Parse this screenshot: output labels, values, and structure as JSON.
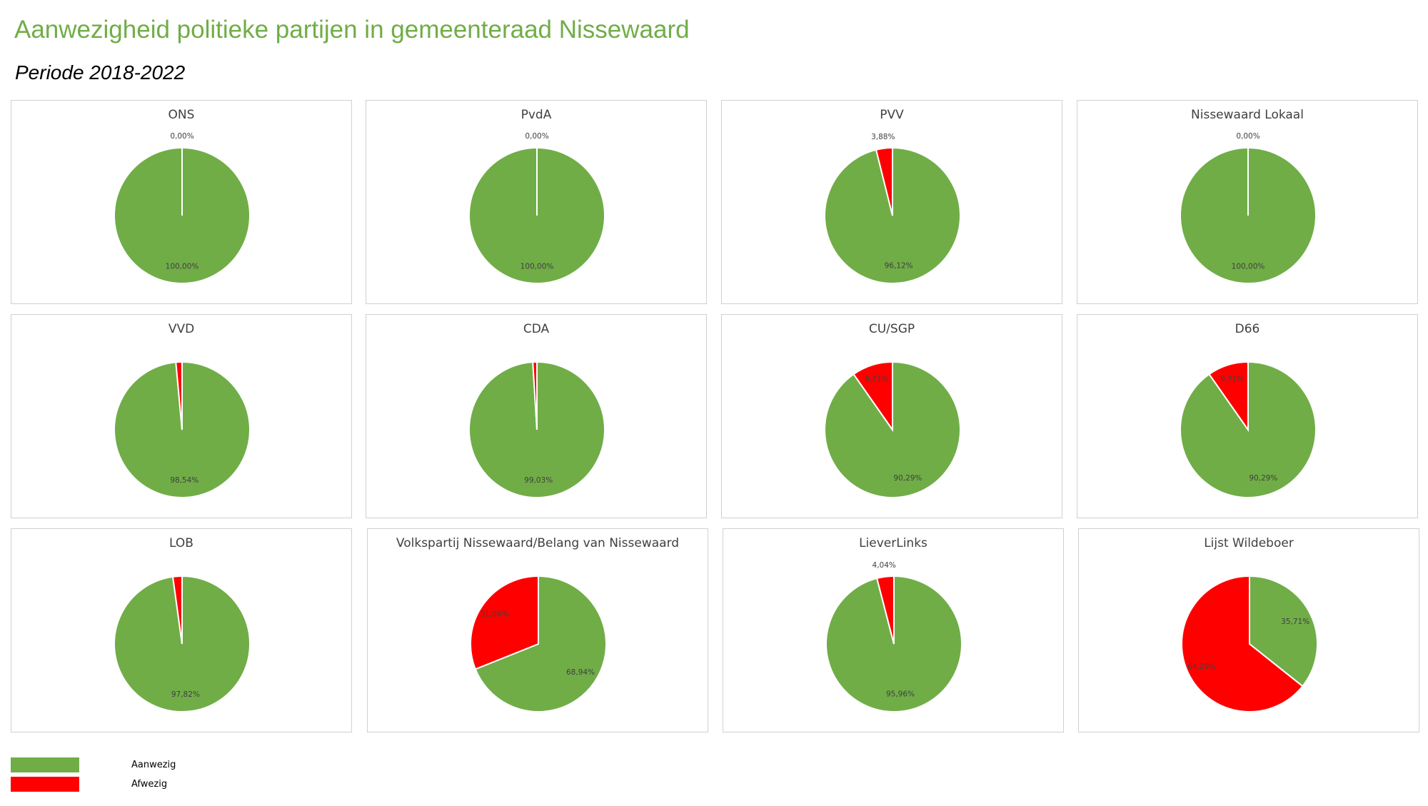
{
  "header": {
    "title": "Aanwezigheid politieke partijen in gemeenteraad Nissewaard",
    "subtitle": "Periode 2018-2022"
  },
  "colors": {
    "aanwezig": "#70ad47",
    "afwezig": "#ff0000"
  },
  "legend": [
    {
      "label": "Aanwezig",
      "color": "#70ad47"
    },
    {
      "label": "Afwezig",
      "color": "#ff0000"
    }
  ],
  "chart_data": [
    {
      "type": "pie",
      "title": "ONS",
      "categories": [
        "Aanwezig",
        "Afwezig"
      ],
      "values": [
        100.0,
        0.0
      ],
      "labels": [
        "100,00%",
        "0,00%"
      ]
    },
    {
      "type": "pie",
      "title": "PvdA",
      "categories": [
        "Aanwezig",
        "Afwezig"
      ],
      "values": [
        100.0,
        0.0
      ],
      "labels": [
        "100,00%",
        "0,00%"
      ]
    },
    {
      "type": "pie",
      "title": "PVV",
      "categories": [
        "Aanwezig",
        "Afwezig"
      ],
      "values": [
        96.12,
        3.88
      ],
      "labels": [
        "96,12%",
        "3,88%"
      ]
    },
    {
      "type": "pie",
      "title": "Nissewaard Lokaal",
      "categories": [
        "Aanwezig",
        "Afwezig"
      ],
      "values": [
        100.0,
        0.0
      ],
      "labels": [
        "100,00%",
        "0,00%"
      ]
    },
    {
      "type": "pie",
      "title": "VVD",
      "categories": [
        "Aanwezig",
        "Afwezig"
      ],
      "values": [
        98.54,
        1.46
      ],
      "labels": [
        "98,54%",
        ""
      ]
    },
    {
      "type": "pie",
      "title": "CDA",
      "categories": [
        "Aanwezig",
        "Afwezig"
      ],
      "values": [
        99.03,
        0.97
      ],
      "labels": [
        "99,03%",
        ""
      ]
    },
    {
      "type": "pie",
      "title": "CU/SGP",
      "categories": [
        "Aanwezig",
        "Afwezig"
      ],
      "values": [
        90.29,
        9.71
      ],
      "labels": [
        "90,29%",
        "9,71%"
      ]
    },
    {
      "type": "pie",
      "title": "D66",
      "categories": [
        "Aanwezig",
        "Afwezig"
      ],
      "values": [
        90.29,
        9.71
      ],
      "labels": [
        "90,29%",
        "9,71%"
      ]
    },
    {
      "type": "pie",
      "title": "LOB",
      "categories": [
        "Aanwezig",
        "Afwezig"
      ],
      "values": [
        97.82,
        2.18
      ],
      "labels": [
        "97,82%",
        ""
      ]
    },
    {
      "type": "pie",
      "title": "Volkspartij Nissewaard/Belang van Nissewaard",
      "categories": [
        "Aanwezig",
        "Afwezig"
      ],
      "values": [
        68.94,
        31.06
      ],
      "labels": [
        "68,94%",
        "31,06%"
      ]
    },
    {
      "type": "pie",
      "title": "LieverLinks",
      "categories": [
        "Aanwezig",
        "Afwezig"
      ],
      "values": [
        95.96,
        4.04
      ],
      "labels": [
        "95,96%",
        "4,04%"
      ]
    },
    {
      "type": "pie",
      "title": "Lijst Wildeboer",
      "categories": [
        "Aanwezig",
        "Afwezig"
      ],
      "values": [
        35.71,
        64.29
      ],
      "labels": [
        "35,71%",
        "64,29%"
      ]
    }
  ]
}
